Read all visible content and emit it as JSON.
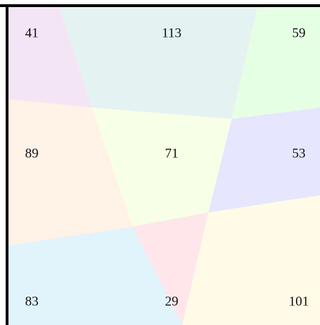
{
  "grid": {
    "cells": [
      [
        41,
        113,
        59
      ],
      [
        89,
        71,
        53
      ],
      [
        83,
        29,
        101
      ]
    ],
    "colors": [
      [
        "#f3e5f5",
        "#e5f2f2",
        "#e5ffe5"
      ],
      [
        "#fff2e6",
        "#f7ffe6",
        "#e6e6ff"
      ],
      [
        "#e1f3fb",
        "#ffe6ea",
        "#fffbe6"
      ]
    ]
  }
}
